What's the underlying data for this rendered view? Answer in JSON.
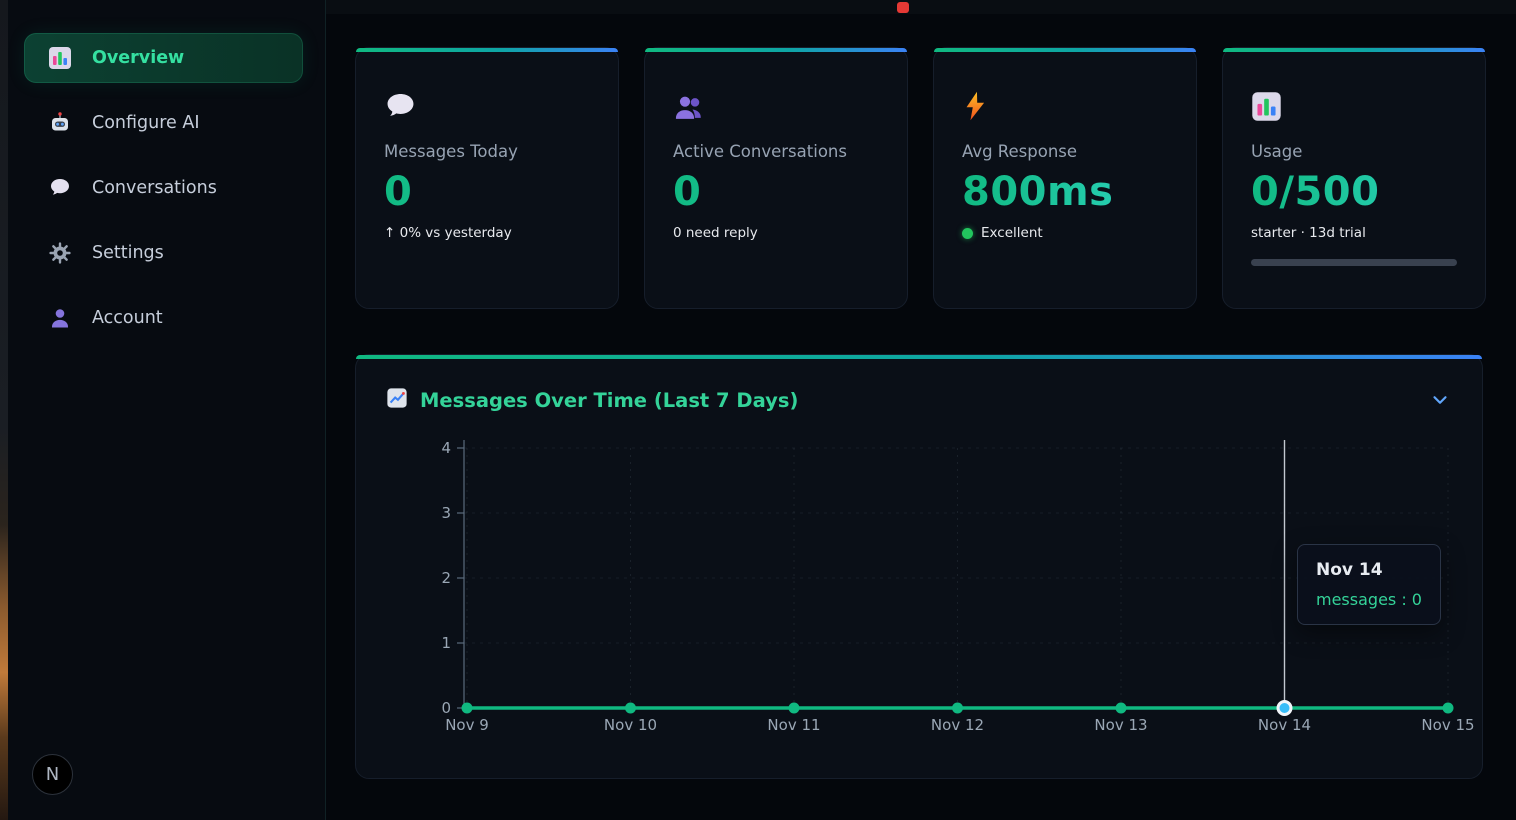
{
  "sidebar": {
    "items": [
      {
        "label": "Overview",
        "icon": "bar-chart-icon",
        "active": true
      },
      {
        "label": "Configure AI",
        "icon": "robot-icon",
        "active": false
      },
      {
        "label": "Conversations",
        "icon": "speech-bubble-icon",
        "active": false
      },
      {
        "label": "Settings",
        "icon": "gear-icon",
        "active": false
      },
      {
        "label": "Account",
        "icon": "person-icon",
        "active": false
      }
    ],
    "avatar_letter": "N"
  },
  "stats": [
    {
      "label": "Messages Today",
      "value": "0",
      "sub": "↑ 0% vs yesterday",
      "icon": "speech-bubble-icon"
    },
    {
      "label": "Active Conversations",
      "value": "0",
      "sub": "0 need reply",
      "icon": "people-icon"
    },
    {
      "label": "Avg Response",
      "value": "800ms",
      "sub": "Excellent",
      "icon": "lightning-icon",
      "status_color": "#22c55e"
    },
    {
      "label": "Usage",
      "value": "0/500",
      "sub": "starter · 13d trial",
      "icon": "bar-chart-icon",
      "progress_percent": 0
    }
  ],
  "chart": {
    "title": "Messages Over Time (Last 7 Days)",
    "icon": "chart-increasing-icon",
    "collapse_icon": "chevron-down-icon"
  },
  "chart_data": {
    "type": "line",
    "x": [
      "Nov 9",
      "Nov 10",
      "Nov 11",
      "Nov 12",
      "Nov 13",
      "Nov 14",
      "Nov 15"
    ],
    "series": [
      {
        "name": "messages",
        "values": [
          0,
          0,
          0,
          0,
          0,
          0,
          0
        ]
      }
    ],
    "ylim": [
      0,
      4
    ],
    "yticks": [
      0,
      1,
      2,
      3,
      4
    ],
    "grid": true,
    "line_color": "#10b981",
    "active_index": 5,
    "active_dot_color": "#38bdf8",
    "tooltip": {
      "title": "Nov 14",
      "series": "messages",
      "value": 0,
      "line": "messages : 0"
    }
  },
  "colors": {
    "accent_green": "#10b981",
    "accent_teal": "#2dd4bf",
    "accent_blue": "#3b82f6",
    "active_text": "#34d399"
  }
}
